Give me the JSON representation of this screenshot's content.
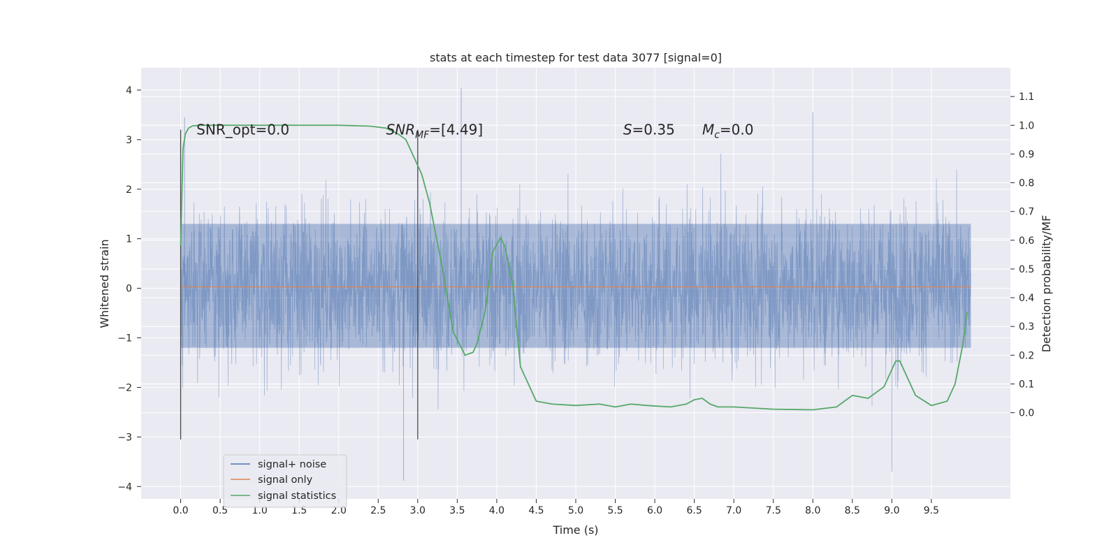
{
  "chart_data": {
    "type": "line",
    "title": "stats at each timestep for test data 3077 [signal=0]",
    "xlabel": "Time (s)",
    "ylabel": "Whitened strain",
    "y2label": "Detection probability/MF",
    "xlim": [
      -0.5,
      10.5
    ],
    "ylim": [
      -4.25,
      4.45
    ],
    "y2lim": [
      -0.3,
      1.2
    ],
    "xticks": [
      0.0,
      0.5,
      1.0,
      1.5,
      2.0,
      2.5,
      3.0,
      3.5,
      4.0,
      4.5,
      5.0,
      5.5,
      6.0,
      6.5,
      7.0,
      7.5,
      8.0,
      8.5,
      9.0,
      9.5
    ],
    "yticks": [
      4,
      3,
      2,
      1,
      0,
      -1,
      -2,
      -3,
      -4
    ],
    "y2ticks": [
      1.1,
      1.0,
      0.9,
      0.8,
      0.7,
      0.6,
      0.5,
      0.4,
      0.3,
      0.2,
      0.1,
      0.0
    ],
    "grid": true,
    "legend_position": "lower-left",
    "annotations": {
      "snr_opt": {
        "label": "SNR_opt=0.0",
        "x": 0.2,
        "y": 3.2
      },
      "snr_mf": {
        "var": "SNR",
        "sub": "MF",
        "rest": "=[4.49]",
        "x": 2.6,
        "y": 3.2
      },
      "s_stat": {
        "var": "S",
        "rest": "=0.35",
        "x": 5.6,
        "y": 3.2
      },
      "mc": {
        "var": "M",
        "sub": "c",
        "rest": "=0.0",
        "x": 6.6,
        "y": 3.2
      }
    },
    "vlines": [
      {
        "x": 0.0,
        "y_from": -3.05,
        "y_to": 3.2
      },
      {
        "x": 3.0,
        "y_from": -3.05,
        "y_to": 3.2
      }
    ],
    "noise": {
      "t_start": 0.0,
      "t_end": 10.0,
      "band_lo": -1.2,
      "band_hi": 1.3,
      "y_min": -3.88,
      "y_max": 4.05
    },
    "series": [
      {
        "name": "signal+ noise",
        "axis": "left",
        "color": "#4c72b0"
      },
      {
        "name": "signal only",
        "axis": "left",
        "color": "#dd8452",
        "x": [
          0.0,
          10.0
        ],
        "y": [
          0.03,
          0.03
        ]
      },
      {
        "name": "signal statistics",
        "axis": "right",
        "color": "#55a868",
        "x": [
          0.0,
          0.03,
          0.06,
          0.1,
          0.15,
          0.25,
          0.4,
          1.0,
          1.5,
          2.0,
          2.4,
          2.6,
          2.75,
          2.85,
          2.95,
          3.05,
          3.15,
          3.3,
          3.45,
          3.6,
          3.7,
          3.75,
          3.85,
          3.9,
          3.95,
          4.05,
          4.1,
          4.2,
          4.3,
          4.5,
          4.7,
          5.0,
          5.3,
          5.5,
          5.7,
          5.9,
          6.2,
          6.4,
          6.5,
          6.6,
          6.7,
          6.8,
          7.0,
          7.5,
          8.0,
          8.3,
          8.5,
          8.7,
          8.9,
          9.0,
          9.05,
          9.1,
          9.2,
          9.3,
          9.5,
          9.7,
          9.8,
          9.9,
          9.95
        ],
        "y": [
          0.58,
          0.92,
          0.97,
          0.99,
          0.998,
          1.0,
          1.0,
          1.0,
          1.0,
          1.0,
          0.997,
          0.99,
          0.97,
          0.95,
          0.89,
          0.83,
          0.73,
          0.52,
          0.28,
          0.2,
          0.21,
          0.24,
          0.35,
          0.45,
          0.56,
          0.61,
          0.58,
          0.45,
          0.16,
          0.04,
          0.03,
          0.025,
          0.03,
          0.02,
          0.03,
          0.025,
          0.02,
          0.03,
          0.045,
          0.05,
          0.03,
          0.02,
          0.02,
          0.012,
          0.01,
          0.02,
          0.06,
          0.05,
          0.09,
          0.15,
          0.18,
          0.18,
          0.12,
          0.06,
          0.025,
          0.04,
          0.1,
          0.24,
          0.35
        ]
      }
    ]
  }
}
